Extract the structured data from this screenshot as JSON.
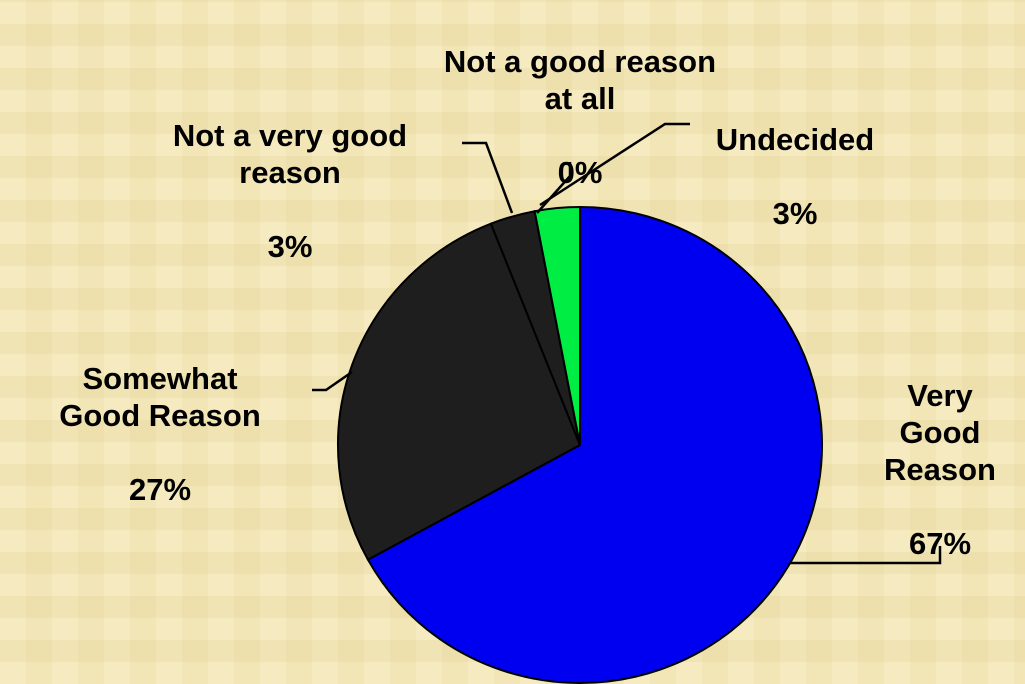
{
  "chart_data": {
    "type": "pie",
    "title": "",
    "slices": [
      {
        "name": "Very Good Reason",
        "label": "Very\nGood\nReason",
        "value": 67,
        "value_label": "67%",
        "color": "#0000f0"
      },
      {
        "name": "Somewhat Good Reason",
        "label": "Somewhat\nGood Reason",
        "value": 27,
        "value_label": "27%",
        "color": "#1e1e1e"
      },
      {
        "name": "Not a very good reason",
        "label": "Not a very good\nreason",
        "value": 3,
        "value_label": "3%",
        "color": "#1e1e1e"
      },
      {
        "name": "Not a good reason at all",
        "label": "Not a good reason\nat all",
        "value": 0,
        "value_label": "0%",
        "color": "#1e1e1e"
      },
      {
        "name": "Undecided",
        "label": "Undecided",
        "value": 3,
        "value_label": "3%",
        "color": "#00ee44"
      }
    ],
    "legend": "none"
  }
}
